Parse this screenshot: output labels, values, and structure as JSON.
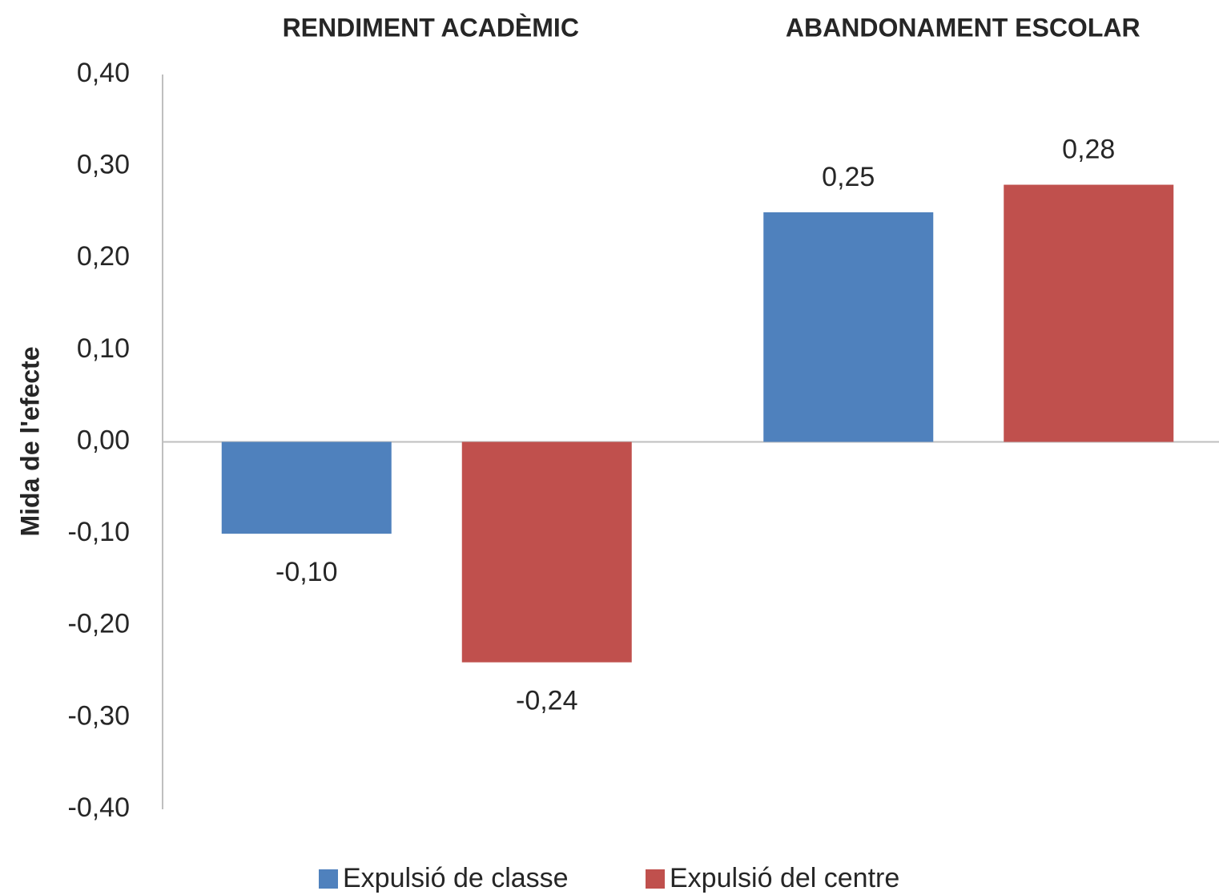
{
  "chart_data": {
    "type": "bar",
    "categories": [
      "RENDIMENT ACADÈMIC",
      "ABANDONAMENT ESCOLAR"
    ],
    "y_label": "Mida de l'efecte",
    "series": [
      {
        "name": "Expulsió de classe",
        "color": "#4f81bd",
        "values": [
          -0.1,
          0.25
        ],
        "value_labels": [
          "-0,10",
          "0,25"
        ]
      },
      {
        "name": "Expulsió del centre",
        "color": "#c0504d",
        "values": [
          -0.24,
          0.28
        ],
        "value_labels": [
          "-0,24",
          "0,28"
        ]
      }
    ],
    "ylim": [
      -0.4,
      0.4
    ],
    "yticks": [
      {
        "value": 0.4,
        "label": "0,40"
      },
      {
        "value": 0.3,
        "label": "0,30"
      },
      {
        "value": 0.2,
        "label": "0,20"
      },
      {
        "value": 0.1,
        "label": "0,10"
      },
      {
        "value": 0,
        "label": "0,00"
      },
      {
        "value": -0.1,
        "label": "-0,10"
      },
      {
        "value": -0.2,
        "label": "-0,20"
      },
      {
        "value": -0.3,
        "label": "-0,30"
      },
      {
        "value": -0.4,
        "label": "-0,40"
      }
    ],
    "legend": "bottom"
  }
}
